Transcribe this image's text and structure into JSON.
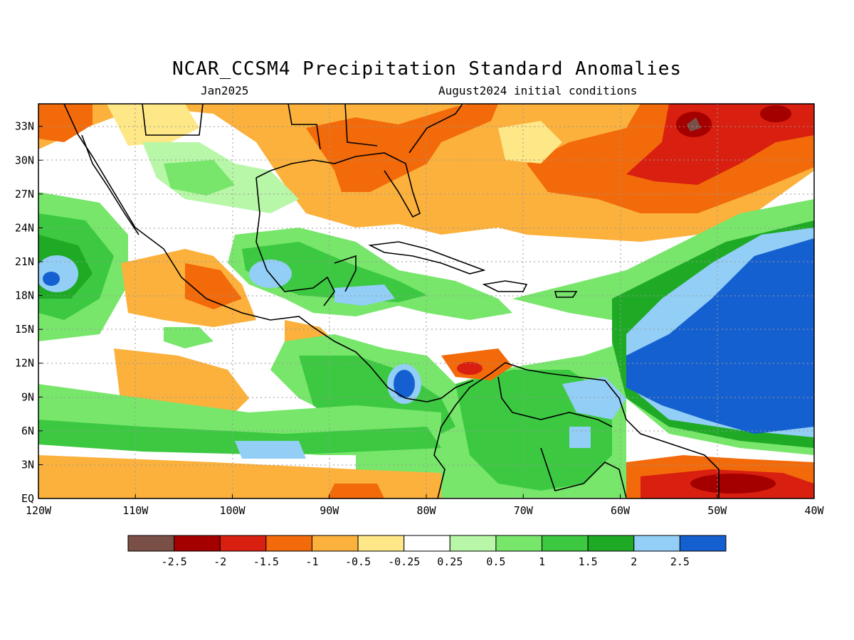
{
  "title": "NCAR_CCSM4 Precipitation Standard Anomalies",
  "subtitle_left": "Jan2025",
  "subtitle_right": "August2024 initial conditions",
  "map": {
    "lon_labels": [
      "120W",
      "110W",
      "100W",
      "90W",
      "80W",
      "70W",
      "60W",
      "50W",
      "40W"
    ],
    "lat_labels": [
      "EQ",
      "3N",
      "6N",
      "9N",
      "12N",
      "15N",
      "18N",
      "21N",
      "24N",
      "27N",
      "30N",
      "33N"
    ],
    "lon_range": [
      -120,
      -40
    ],
    "lat_range": [
      0,
      35
    ],
    "grid": "dotted"
  },
  "colorbar": {
    "labels": [
      "-2.5",
      "-2",
      "-1.5",
      "-1",
      "-0.5",
      "-0.25",
      "0.25",
      "0.5",
      "1",
      "1.5",
      "2",
      "2.5"
    ],
    "colors": [
      "#7a4f46",
      "#a40000",
      "#d81f10",
      "#f26a0a",
      "#fbb13c",
      "#fee787",
      "#ffffff",
      "#b7f7a7",
      "#77e66b",
      "#3cc941",
      "#1faa26",
      "#92cef5",
      "#1560d0"
    ]
  }
}
